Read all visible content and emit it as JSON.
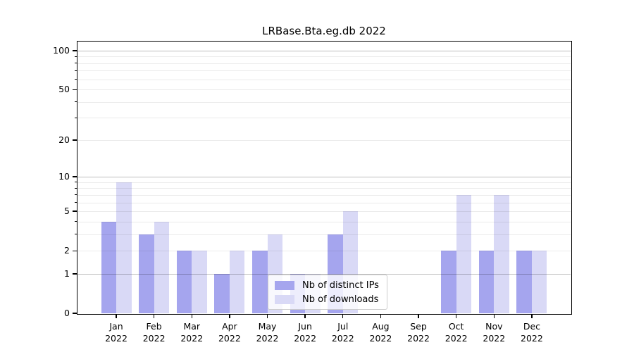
{
  "chart_data": {
    "type": "bar",
    "title": "LRBase.Bta.eg.db 2022",
    "categories": [
      "Jan 2022",
      "Feb 2022",
      "Mar 2022",
      "Apr 2022",
      "May 2022",
      "Jun 2022",
      "Jul 2022",
      "Aug 2022",
      "Sep 2022",
      "Oct 2022",
      "Nov 2022",
      "Dec 2022"
    ],
    "series": [
      {
        "name": "Nb of distinct IPs",
        "color": "#a5a5ee",
        "values": [
          4,
          3,
          2,
          1,
          2,
          1,
          3,
          0,
          0,
          2,
          2,
          2
        ]
      },
      {
        "name": "Nb of downloads",
        "color": "#d9d9f6",
        "values": [
          9,
          4,
          2,
          2,
          3,
          1,
          5,
          0,
          0,
          7,
          7,
          2
        ]
      }
    ],
    "xlabel": "",
    "ylabel": "",
    "yscale": "log1p",
    "ylim": [
      0,
      112
    ],
    "ytick_labels": [
      "0",
      "1",
      "2",
      "5",
      "10",
      "20",
      "50",
      "100"
    ],
    "ytick_values": [
      0,
      1,
      2,
      5,
      10,
      20,
      50,
      100
    ],
    "major_grid_values": [
      1,
      10,
      100
    ],
    "minor_grid_values": [
      2,
      3,
      4,
      5,
      6,
      7,
      8,
      9,
      20,
      30,
      40,
      50,
      60,
      70,
      80,
      90
    ],
    "grid": true,
    "legend_position": "lower center"
  },
  "colors": {
    "axis": "#000000",
    "background": "#ffffff",
    "legend_border": "#cccccc",
    "series_distinct_ips": "#a5a5ee",
    "series_downloads": "#d9d9f6"
  }
}
